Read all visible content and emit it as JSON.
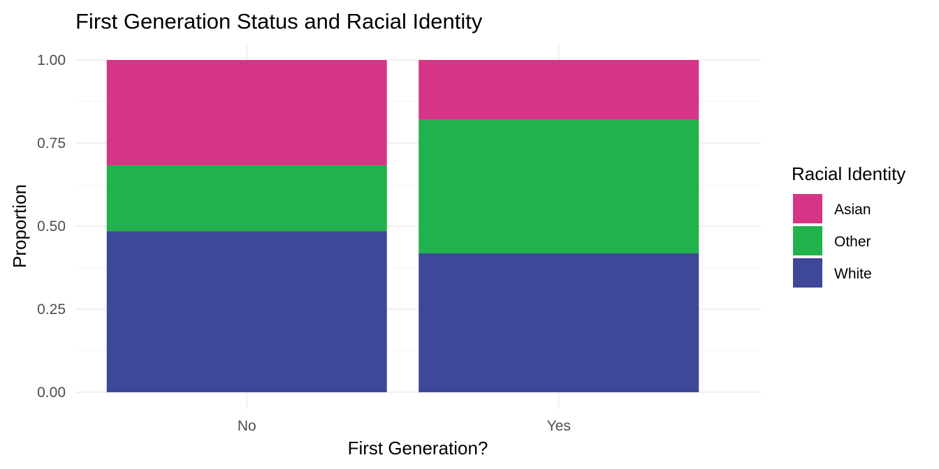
{
  "chart_data": {
    "type": "bar",
    "stacked": true,
    "title": "First Generation Status and Racial Identity",
    "xlabel": "First Generation?",
    "ylabel": "Proportion",
    "categories": [
      "No",
      "Yes"
    ],
    "ylim": [
      0,
      1
    ],
    "yticks": [
      "0.00",
      "0.25",
      "0.50",
      "0.75",
      "1.00"
    ],
    "grid": true,
    "legend": {
      "title": "Racial Identity",
      "position": "right",
      "entries": [
        "Asian",
        "Other",
        "White"
      ]
    },
    "series": [
      {
        "name": "White",
        "color": "#3f4799",
        "values": [
          0.485,
          0.418
        ]
      },
      {
        "name": "Other",
        "color": "#21b24b",
        "values": [
          0.198,
          0.402
        ]
      },
      {
        "name": "Asian",
        "color": "#d63487",
        "values": [
          0.317,
          0.18
        ]
      }
    ]
  }
}
